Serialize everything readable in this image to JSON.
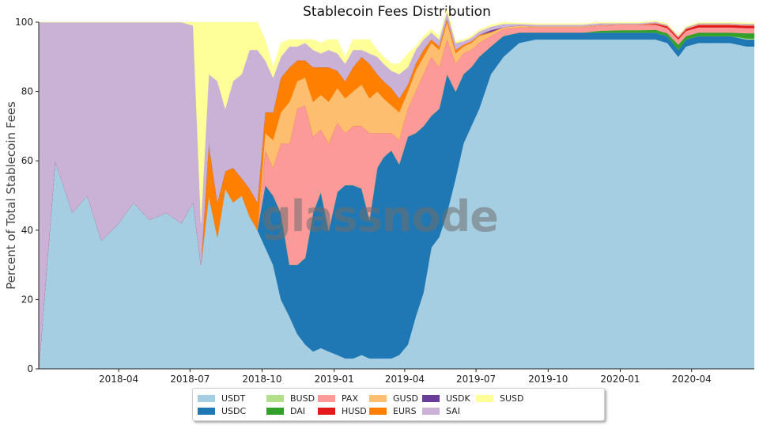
{
  "chart_data": {
    "type": "area",
    "stacked": true,
    "normalized_percent": true,
    "title": "Stablecoin Fees Distribution",
    "ylabel": "Percent of Total Stablecoin Fees",
    "xlabel": "",
    "ylim": [
      0,
      100
    ],
    "yticks": [
      0,
      20,
      40,
      60,
      80,
      100
    ],
    "xlim": [
      "2017-12-20",
      "2020-06-20"
    ],
    "xticks": [
      "2018-04",
      "2018-07",
      "2018-10",
      "2019-01",
      "2019-04",
      "2019-07",
      "2019-10",
      "2020-01",
      "2020-04"
    ],
    "grid": false,
    "legend_position": "bottom-center",
    "watermark": "glassnode",
    "x": [
      "2017-12-20",
      "2018-01-10",
      "2018-02-01",
      "2018-02-20",
      "2018-03-10",
      "2018-04-01",
      "2018-04-20",
      "2018-05-10",
      "2018-06-01",
      "2018-06-20",
      "2018-07-05",
      "2018-07-15",
      "2018-07-25",
      "2018-08-05",
      "2018-08-15",
      "2018-08-25",
      "2018-09-05",
      "2018-09-15",
      "2018-09-25",
      "2018-10-05",
      "2018-10-15",
      "2018-10-25",
      "2018-11-05",
      "2018-11-15",
      "2018-11-25",
      "2018-12-05",
      "2018-12-15",
      "2018-12-25",
      "2019-01-05",
      "2019-01-15",
      "2019-01-25",
      "2019-02-05",
      "2019-02-15",
      "2019-02-25",
      "2019-03-05",
      "2019-03-15",
      "2019-03-25",
      "2019-04-05",
      "2019-04-15",
      "2019-04-25",
      "2019-05-05",
      "2019-05-15",
      "2019-05-25",
      "2019-06-05",
      "2019-06-15",
      "2019-06-25",
      "2019-07-05",
      "2019-07-20",
      "2019-08-05",
      "2019-08-25",
      "2019-09-15",
      "2019-10-05",
      "2019-10-25",
      "2019-11-15",
      "2019-12-05",
      "2020-01-01",
      "2020-01-25",
      "2020-02-15",
      "2020-03-01",
      "2020-03-15",
      "2020-03-25",
      "2020-04-10",
      "2020-05-01",
      "2020-05-20",
      "2020-06-10",
      "2020-06-20"
    ],
    "series": [
      {
        "name": "USDT",
        "color": "#a6cee3",
        "values": [
          0,
          60,
          45,
          50,
          37,
          42,
          48,
          43,
          45,
          42,
          48,
          30,
          50,
          38,
          52,
          48,
          50,
          44,
          40,
          35,
          30,
          20,
          15,
          10,
          7,
          5,
          6,
          5,
          4,
          3,
          3,
          4,
          3,
          3,
          3,
          3,
          4,
          7,
          15,
          22,
          35,
          38,
          45,
          55,
          65,
          70,
          75,
          85,
          90,
          94,
          95,
          95,
          95,
          95,
          95,
          95,
          95,
          95,
          94,
          90,
          93,
          94,
          94,
          94,
          93,
          93
        ]
      },
      {
        "name": "USDC",
        "color": "#1f78b4",
        "values": [
          0,
          0,
          0,
          0,
          0,
          0,
          0,
          0,
          0,
          0,
          0,
          0,
          0,
          0,
          0,
          0,
          0,
          0,
          0,
          18,
          20,
          25,
          15,
          20,
          25,
          40,
          45,
          35,
          47,
          50,
          50,
          48,
          40,
          55,
          58,
          60,
          55,
          60,
          53,
          48,
          38,
          37,
          40,
          25,
          20,
          17,
          15,
          8,
          6,
          3,
          2,
          2,
          2,
          2,
          2,
          2,
          2,
          2,
          2,
          2,
          2,
          2,
          2,
          2,
          2,
          2
        ]
      },
      {
        "name": "BUSD",
        "color": "#b2df8a",
        "values": [
          0,
          0,
          0,
          0,
          0,
          0,
          0,
          0,
          0,
          0,
          0,
          0,
          0,
          0,
          0,
          0,
          0,
          0,
          0,
          0,
          0,
          0,
          0,
          0,
          0,
          0,
          0,
          0,
          0,
          0,
          0,
          0,
          0,
          0,
          0,
          0,
          0,
          0,
          0,
          0,
          0,
          0,
          0,
          0,
          0,
          0,
          0,
          0,
          0,
          0,
          0,
          0,
          0,
          0,
          0,
          0,
          0,
          0,
          0,
          0,
          0,
          0,
          0,
          0,
          0.3,
          0.3
        ]
      },
      {
        "name": "DAI",
        "color": "#33a02c",
        "values": [
          0,
          0,
          0,
          0,
          0,
          0,
          0,
          0,
          0,
          0,
          0,
          0,
          0,
          0,
          0,
          0,
          0,
          0,
          0,
          0,
          0,
          0,
          0,
          0,
          0,
          0,
          0,
          0,
          0,
          0,
          0,
          0,
          0,
          0,
          0,
          0,
          0,
          0,
          0,
          0,
          0,
          0,
          0,
          0,
          0,
          0,
          0,
          0,
          0,
          0,
          0,
          0,
          0,
          0,
          0.5,
          0.7,
          0.7,
          0.8,
          0.8,
          1.5,
          1,
          1,
          1,
          1,
          1.5,
          1.5
        ]
      },
      {
        "name": "PAX",
        "color": "#fb9a99",
        "values": [
          0,
          0,
          0,
          0,
          0,
          0,
          0,
          0,
          0,
          0,
          0,
          0,
          0,
          0,
          0,
          0,
          0,
          0,
          0,
          10,
          8,
          20,
          35,
          45,
          44,
          22,
          18,
          25,
          20,
          15,
          17,
          18,
          25,
          10,
          7,
          5,
          7,
          8,
          12,
          15,
          17,
          12,
          10,
          8,
          6,
          5,
          4,
          3,
          2,
          1.5,
          1.5,
          1.5,
          1.5,
          1.5,
          1.5,
          1.5,
          1.5,
          1.5,
          1.5,
          1.5,
          1.5,
          1.5,
          1.5,
          1.5,
          1.5,
          1.5
        ]
      },
      {
        "name": "HUSD",
        "color": "#e31a1c",
        "values": [
          0,
          0,
          0,
          0,
          0,
          0,
          0,
          0,
          0,
          0,
          0,
          0,
          0,
          0,
          0,
          0,
          0,
          0,
          0,
          0,
          0,
          0,
          0,
          0,
          0,
          0,
          0,
          0,
          0,
          0,
          0,
          0,
          0,
          0,
          0,
          0,
          0,
          0,
          0,
          0,
          0,
          0,
          0,
          0,
          0,
          0,
          0,
          0,
          0,
          0,
          0,
          0,
          0,
          0,
          0,
          0,
          0,
          0.3,
          0.5,
          0.5,
          0.5,
          0.7,
          0.7,
          0.7,
          0.7,
          0.7
        ]
      },
      {
        "name": "GUSD",
        "color": "#fdbf6f",
        "values": [
          0,
          0,
          0,
          0,
          0,
          0,
          0,
          0,
          0,
          0,
          0,
          0,
          0,
          0,
          0,
          0,
          0,
          0,
          0,
          5,
          8,
          9,
          12,
          8,
          8,
          10,
          10,
          12,
          10,
          10,
          10,
          12,
          10,
          12,
          10,
          8,
          8,
          5,
          6,
          5,
          4,
          5,
          5,
          3,
          2,
          2,
          2,
          1,
          0.5,
          0.5,
          0.3,
          0.3,
          0.3,
          0.3,
          0.2,
          0.2,
          0.2,
          0.2,
          0.2,
          0.2,
          0.2,
          0.2,
          0.2,
          0.2,
          0.2,
          0.2
        ]
      },
      {
        "name": "EURS",
        "color": "#ff7f00",
        "values": [
          0,
          0,
          0,
          0,
          0,
          0,
          0,
          0,
          0,
          0,
          0,
          0,
          15,
          10,
          5,
          10,
          5,
          8,
          8,
          6,
          8,
          10,
          10,
          6,
          5,
          10,
          8,
          10,
          5,
          5,
          7,
          8,
          10,
          5,
          5,
          5,
          4,
          2,
          2,
          2,
          1,
          1,
          1,
          1,
          0.5,
          0.5,
          0.3,
          0.2,
          0,
          0,
          0,
          0,
          0,
          0,
          0,
          0,
          0,
          0,
          0,
          0,
          0,
          0,
          0,
          0,
          0,
          0
        ]
      },
      {
        "name": "USDK",
        "color": "#6a3d9a",
        "values": [
          0,
          0,
          0,
          0,
          0,
          0,
          0,
          0,
          0,
          0,
          0,
          0,
          0,
          0,
          0,
          0,
          0,
          0,
          0,
          0,
          0,
          0,
          0,
          0,
          0,
          0,
          0,
          0,
          0,
          0,
          0,
          0,
          0,
          0,
          0,
          0,
          0,
          0,
          0,
          0,
          0,
          0,
          0,
          0,
          0,
          0,
          0,
          0.5,
          0,
          0,
          0,
          0,
          0,
          0,
          0,
          0,
          0,
          0,
          0,
          0,
          0,
          0,
          0,
          0,
          0,
          0
        ]
      },
      {
        "name": "SAI",
        "color": "#cab2d6",
        "values": [
          100,
          40,
          55,
          50,
          63,
          58,
          52,
          57,
          55,
          58,
          51,
          12,
          20,
          35,
          18,
          25,
          30,
          40,
          44,
          15,
          10,
          6,
          6,
          4,
          5,
          5,
          4,
          5,
          5,
          5,
          5,
          2,
          3,
          5,
          5,
          5,
          7,
          5,
          4,
          3,
          2,
          2,
          2,
          2,
          1,
          1,
          1,
          1,
          1,
          0.5,
          0.5,
          0.5,
          0.5,
          0.5,
          0.5,
          0.3,
          0.3,
          0.3,
          0.3,
          0.3,
          0.3,
          0.3,
          0.3,
          0.3,
          0.3,
          0.3
        ]
      },
      {
        "name": "SUSD",
        "color": "#ffff99",
        "values": [
          0,
          0,
          0,
          0,
          0,
          0,
          0,
          0,
          0,
          0,
          1,
          58,
          15,
          17,
          25,
          17,
          15,
          8,
          8,
          6,
          3,
          4,
          2,
          2,
          1,
          3,
          3,
          3,
          4,
          2,
          3,
          3,
          4,
          2,
          2,
          2,
          3,
          4,
          1,
          1,
          1,
          1,
          1,
          0.5,
          0.5,
          0.5,
          0.5,
          0.5,
          0.5,
          0.3,
          0.3,
          0.3,
          0.3,
          0.3,
          0.3,
          0.3,
          0.3,
          0.3,
          0.3,
          0.3,
          0.3,
          0.3,
          0.3,
          0.3,
          0.3,
          0.3
        ]
      }
    ]
  }
}
